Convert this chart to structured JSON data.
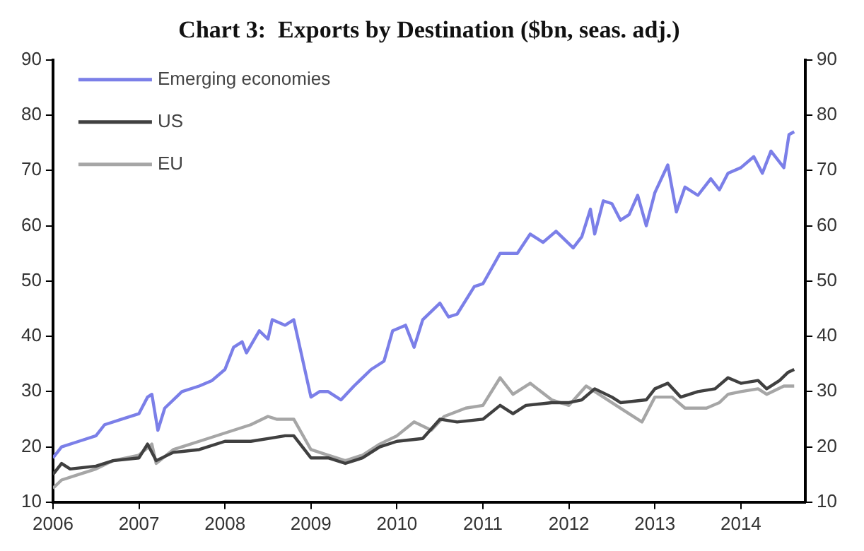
{
  "chart_data": {
    "type": "line",
    "title": "Chart 3:  Exports by Destination ($bn, seas. adj.)",
    "xlim": [
      2006,
      2014.75
    ],
    "xticks": [
      2006,
      2007,
      2008,
      2009,
      2010,
      2011,
      2012,
      2013,
      2014
    ],
    "ylim": [
      10,
      90
    ],
    "yticks": [
      10,
      20,
      30,
      40,
      50,
      60,
      70,
      80,
      90
    ],
    "y2lim": [
      10,
      90
    ],
    "y2ticks": [
      10,
      20,
      30,
      40,
      50,
      60,
      70,
      80,
      90
    ],
    "legend": "top left",
    "grid": false,
    "marker": "none",
    "line_style": "solid",
    "series": [
      {
        "name": "Emerging economies",
        "color": "#7b7fe8",
        "x": [
          2006,
          2006.1,
          2006.3,
          2006.5,
          2006.6,
          2006.8,
          2007,
          2007.1,
          2007.15,
          2007.22,
          2007.3,
          2007.5,
          2007.7,
          2007.85,
          2008,
          2008.1,
          2008.2,
          2008.25,
          2008.4,
          2008.5,
          2008.55,
          2008.7,
          2008.8,
          2008.9,
          2009,
          2009.1,
          2009.2,
          2009.35,
          2009.5,
          2009.7,
          2009.85,
          2009.95,
          2010.1,
          2010.2,
          2010.3,
          2010.5,
          2010.6,
          2010.7,
          2010.9,
          2011,
          2011.2,
          2011.4,
          2011.55,
          2011.7,
          2011.85,
          2012.05,
          2012.15,
          2012.25,
          2012.3,
          2012.4,
          2012.5,
          2012.6,
          2012.7,
          2012.8,
          2012.9,
          2013,
          2013.15,
          2013.25,
          2013.35,
          2013.5,
          2013.65,
          2013.75,
          2013.85,
          2014,
          2014.15,
          2014.25,
          2014.35,
          2014.5,
          2014.56,
          2014.62
        ],
        "values": [
          18,
          20,
          21,
          22,
          24,
          25,
          26,
          29,
          29.5,
          23,
          27,
          30,
          31,
          32,
          34,
          38,
          39,
          37,
          41,
          39.5,
          43,
          42,
          43,
          36,
          29,
          30,
          30,
          28.5,
          31,
          34,
          35.5,
          41,
          42,
          38,
          43,
          46,
          43.5,
          44,
          49,
          49.5,
          55,
          55,
          58.5,
          57,
          59,
          56,
          58,
          63,
          58.5,
          64.5,
          64,
          61,
          62,
          65.5,
          60,
          66,
          71,
          62.5,
          67,
          65.5,
          68.5,
          66.5,
          69.5,
          70.5,
          72.5,
          69.5,
          73.5,
          70.5,
          76.5,
          77
        ]
      },
      {
        "name": "US",
        "color": "#404040",
        "x": [
          2006,
          2006.1,
          2006.2,
          2006.5,
          2006.7,
          2007,
          2007.1,
          2007.2,
          2007.4,
          2007.7,
          2008,
          2008.3,
          2008.5,
          2008.7,
          2008.8,
          2009,
          2009.2,
          2009.4,
          2009.6,
          2009.8,
          2010,
          2010.3,
          2010.5,
          2010.7,
          2011,
          2011.2,
          2011.35,
          2011.5,
          2011.8,
          2012,
          2012.15,
          2012.3,
          2012.5,
          2012.6,
          2012.9,
          2013,
          2013.15,
          2013.3,
          2013.5,
          2013.7,
          2013.85,
          2014,
          2014.2,
          2014.3,
          2014.45,
          2014.55,
          2014.62
        ],
        "values": [
          15,
          17,
          16,
          16.5,
          17.5,
          18,
          20.5,
          17.5,
          19,
          19.5,
          21,
          21,
          21.5,
          22,
          22,
          18,
          18,
          17,
          18,
          20,
          21,
          21.5,
          25,
          24.5,
          25,
          27.5,
          26,
          27.5,
          28,
          28,
          28.5,
          30.5,
          29,
          28,
          28.5,
          30.5,
          31.5,
          29,
          30,
          30.5,
          32.5,
          31.5,
          32,
          30.5,
          32,
          33.5,
          34
        ]
      },
      {
        "name": "EU",
        "color": "#a6a6a6",
        "x": [
          2006,
          2006.1,
          2006.3,
          2006.5,
          2006.7,
          2007,
          2007.15,
          2007.2,
          2007.4,
          2007.7,
          2008,
          2008.3,
          2008.5,
          2008.6,
          2008.8,
          2009,
          2009.2,
          2009.4,
          2009.6,
          2009.8,
          2010,
          2010.2,
          2010.4,
          2010.55,
          2010.8,
          2011,
          2011.2,
          2011.35,
          2011.55,
          2011.8,
          2012,
          2012.2,
          2012.35,
          2012.6,
          2012.85,
          2013,
          2013.2,
          2013.35,
          2013.6,
          2013.75,
          2013.85,
          2014,
          2014.2,
          2014.3,
          2014.5,
          2014.62
        ],
        "values": [
          12.5,
          14,
          15,
          16,
          17.5,
          18.5,
          20.5,
          17,
          19.5,
          21,
          22.5,
          24,
          25.5,
          25,
          25,
          19.5,
          18.5,
          17.5,
          18.5,
          20.5,
          22,
          24.5,
          23,
          25.5,
          27,
          27.5,
          32.5,
          29.5,
          31.5,
          28.5,
          27.5,
          31,
          29.5,
          27,
          24.5,
          29,
          29,
          27,
          27,
          28,
          29.5,
          30,
          30.5,
          29.5,
          31,
          31
        ]
      }
    ]
  }
}
